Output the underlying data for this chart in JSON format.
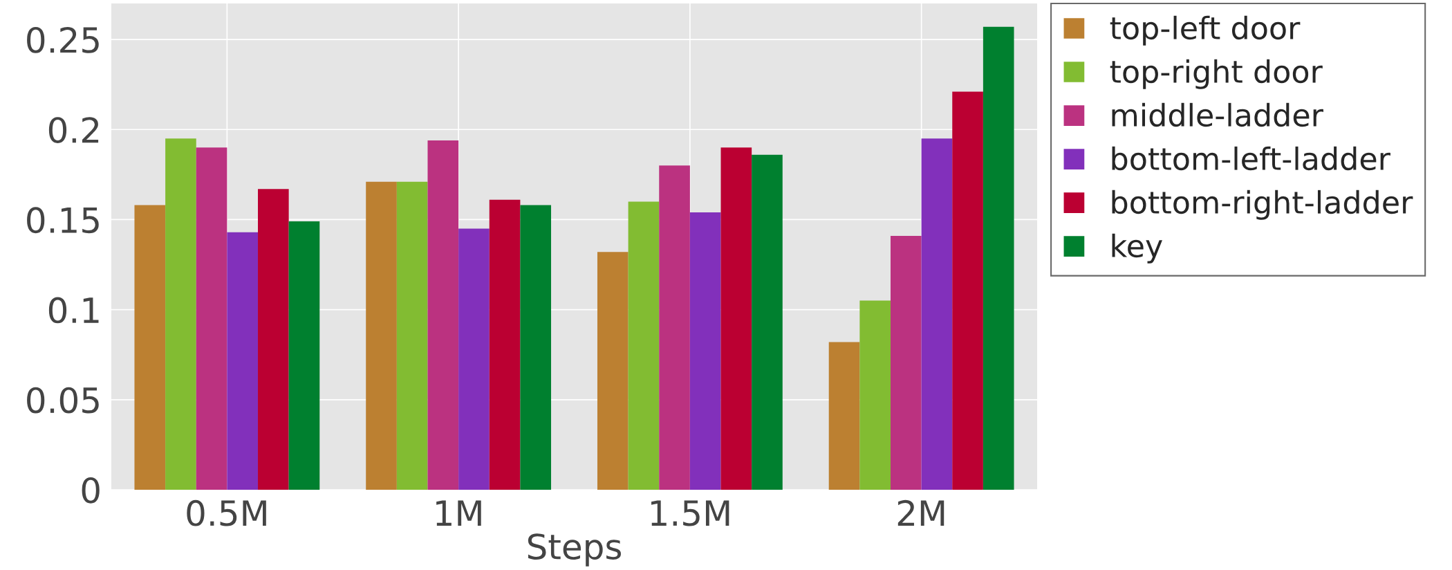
{
  "chart_data": {
    "type": "bar",
    "xlabel": "Steps",
    "categories": [
      "0.5M",
      "1M",
      "1.5M",
      "2M"
    ],
    "series": [
      {
        "name": "top-left door",
        "color": "#bc8031",
        "values": [
          0.158,
          0.171,
          0.132,
          0.082
        ]
      },
      {
        "name": "top-right door",
        "color": "#82bc32",
        "values": [
          0.195,
          0.171,
          0.16,
          0.105
        ]
      },
      {
        "name": "middle-ladder",
        "color": "#bb3280",
        "values": [
          0.19,
          0.194,
          0.18,
          0.141
        ]
      },
      {
        "name": "bottom-left-ladder",
        "color": "#8230bb",
        "values": [
          0.143,
          0.145,
          0.154,
          0.195
        ]
      },
      {
        "name": "bottom-right-ladder",
        "color": "#bb0032",
        "values": [
          0.167,
          0.161,
          0.19,
          0.221
        ]
      },
      {
        "name": "key",
        "color": "#00802f",
        "values": [
          0.149,
          0.158,
          0.186,
          0.257
        ]
      }
    ],
    "ylim": [
      0,
      0.27
    ],
    "yticks": [
      0,
      0.05,
      0.1,
      0.15,
      0.2,
      0.25
    ],
    "grid": true,
    "legend": "right"
  }
}
